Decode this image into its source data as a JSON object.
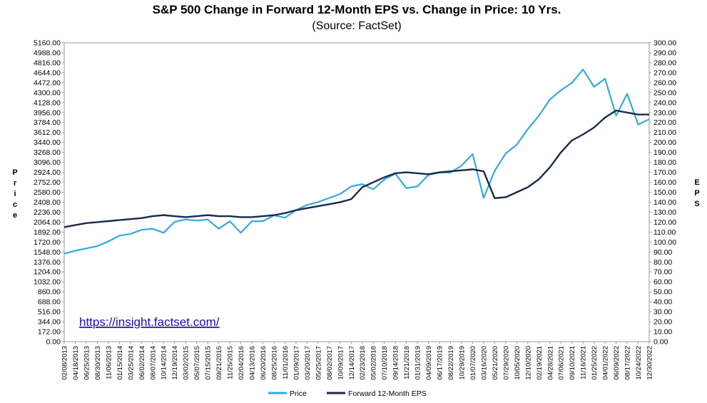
{
  "chart_data": {
    "type": "line",
    "title": "S&P 500 Change in Forward 12-Month EPS vs. Change in Price: 10 Yrs.",
    "subtitle": "(Source: FactSet)",
    "source_url": "https://insight.factset.com/",
    "ylabel_left": "Price",
    "ylabel_right": "EPS",
    "ylim_left": [
      0,
      5160
    ],
    "ylim_right": [
      0,
      300
    ],
    "grid": false,
    "legend_position": "bottom-center",
    "y_left_ticks": [
      "0.00",
      "172.00",
      "344.00",
      "516.00",
      "688.00",
      "860.00",
      "1032.00",
      "1204.00",
      "1376.00",
      "1548.00",
      "1720.00",
      "1892.00",
      "2064.00",
      "2236.00",
      "2408.00",
      "2580.00",
      "2752.00",
      "2924.00",
      "3096.00",
      "3268.00",
      "3440.00",
      "3612.00",
      "3784.00",
      "3956.00",
      "4128.00",
      "4300.00",
      "4472.00",
      "4644.00",
      "4816.00",
      "4988.00",
      "5160.00"
    ],
    "y_right_ticks": [
      "0.00",
      "10.00",
      "20.00",
      "30.00",
      "40.00",
      "50.00",
      "60.00",
      "70.00",
      "80.00",
      "90.00",
      "100.00",
      "110.00",
      "120.00",
      "130.00",
      "140.00",
      "150.00",
      "160.00",
      "170.00",
      "180.00",
      "190.00",
      "200.00",
      "210.00",
      "220.00",
      "230.00",
      "240.00",
      "250.00",
      "260.00",
      "270.00",
      "280.00",
      "290.00",
      "300.00"
    ],
    "x_ticks": [
      "02/08/2013",
      "04/18/2013",
      "06/25/2013",
      "08/30/2013",
      "11/06/2013",
      "01/15/2014",
      "03/25/2014",
      "06/02/2014",
      "08/07/2014",
      "10/14/2014",
      "12/19/2014",
      "03/02/2015",
      "05/07/2015",
      "07/15/2015",
      "09/21/2015",
      "11/25/2015",
      "02/04/2016",
      "04/13/2016",
      "06/20/2016",
      "08/25/2016",
      "11/01/2016",
      "01/09/2017",
      "03/20/2017",
      "05/25/2017",
      "08/02/2017",
      "10/09/2017",
      "12/14/2017",
      "02/23/2018",
      "05/02/2018",
      "07/10/2018",
      "09/14/2018",
      "11/21/2018",
      "01/31/2019",
      "04/09/2019",
      "06/17/2019",
      "08/22/2019",
      "10/29/2019",
      "01/07/2020",
      "03/16/2020",
      "05/21/2020",
      "07/29/2020",
      "10/05/2020",
      "12/10/2020",
      "02/19/2021",
      "04/28/2021",
      "07/06/2021",
      "09/10/2021",
      "11/16/2021",
      "01/25/2022",
      "04/01/2022",
      "06/09/2022",
      "08/17/2022",
      "10/24/2022",
      "12/30/2022"
    ],
    "series": [
      {
        "name": "Price",
        "color": "#33a9e0",
        "x": [
          "02/08/2013",
          "04/18/2013",
          "06/25/2013",
          "08/30/2013",
          "11/06/2013",
          "01/15/2014",
          "03/25/2014",
          "06/02/2014",
          "08/07/2014",
          "10/14/2014",
          "12/19/2014",
          "03/02/2015",
          "05/07/2015",
          "07/15/2015",
          "09/21/2015",
          "11/25/2015",
          "02/04/2016",
          "04/13/2016",
          "06/20/2016",
          "08/25/2016",
          "11/01/2016",
          "01/09/2017",
          "03/20/2017",
          "05/25/2017",
          "08/02/2017",
          "10/09/2017",
          "12/14/2017",
          "02/23/2018",
          "05/02/2018",
          "07/10/2018",
          "09/14/2018",
          "11/21/2018",
          "01/31/2019",
          "04/09/2019",
          "06/17/2019",
          "08/22/2019",
          "10/29/2019",
          "01/07/2020",
          "03/16/2020",
          "05/21/2020",
          "07/29/2020",
          "10/05/2020",
          "12/10/2020",
          "02/19/2021",
          "04/28/2021",
          "07/06/2021",
          "09/10/2021",
          "11/16/2021",
          "01/25/2022",
          "04/01/2022",
          "06/09/2022",
          "08/17/2022",
          "10/24/2022",
          "12/30/2022"
        ],
        "values": [
          1520,
          1570,
          1610,
          1650,
          1730,
          1830,
          1860,
          1930,
          1950,
          1880,
          2070,
          2110,
          2090,
          2110,
          1950,
          2080,
          1880,
          2080,
          2080,
          2180,
          2140,
          2270,
          2360,
          2410,
          2480,
          2550,
          2680,
          2720,
          2630,
          2800,
          2900,
          2650,
          2680,
          2880,
          2920,
          2920,
          3040,
          3240,
          2480,
          2950,
          3250,
          3400,
          3670,
          3900,
          4180,
          4340,
          4470,
          4700,
          4400,
          4540,
          3900,
          4280,
          3750,
          3840
        ]
      },
      {
        "name": "Forward 12-Month EPS",
        "color": "#1b2a4a",
        "x": [
          "02/08/2013",
          "04/18/2013",
          "06/25/2013",
          "08/30/2013",
          "11/06/2013",
          "01/15/2014",
          "03/25/2014",
          "06/02/2014",
          "08/07/2014",
          "10/14/2014",
          "12/19/2014",
          "03/02/2015",
          "05/07/2015",
          "07/15/2015",
          "09/21/2015",
          "11/25/2015",
          "02/04/2016",
          "04/13/2016",
          "06/20/2016",
          "08/25/2016",
          "11/01/2016",
          "01/09/2017",
          "03/20/2017",
          "05/25/2017",
          "08/02/2017",
          "10/09/2017",
          "12/14/2017",
          "02/23/2018",
          "05/02/2018",
          "07/10/2018",
          "09/14/2018",
          "11/21/2018",
          "01/31/2019",
          "04/09/2019",
          "06/17/2019",
          "08/22/2019",
          "10/29/2019",
          "01/07/2020",
          "03/16/2020",
          "05/21/2020",
          "07/29/2020",
          "10/05/2020",
          "12/10/2020",
          "02/19/2021",
          "04/28/2021",
          "07/06/2021",
          "09/10/2021",
          "11/16/2021",
          "01/25/2022",
          "04/01/2022",
          "06/09/2022",
          "08/17/2022",
          "10/24/2022",
          "12/30/2022"
        ],
        "values": [
          115,
          117,
          119,
          120,
          121,
          122,
          123,
          124,
          126,
          127,
          126,
          125,
          126,
          127,
          126,
          126,
          125,
          125,
          126,
          127,
          129,
          132,
          134,
          136,
          138,
          140,
          143,
          155,
          160,
          165,
          169,
          170,
          169,
          168,
          170,
          171,
          172,
          173,
          171,
          144,
          145,
          150,
          155,
          163,
          175,
          190,
          202,
          208,
          215,
          225,
          232,
          230,
          228,
          228
        ]
      }
    ]
  }
}
